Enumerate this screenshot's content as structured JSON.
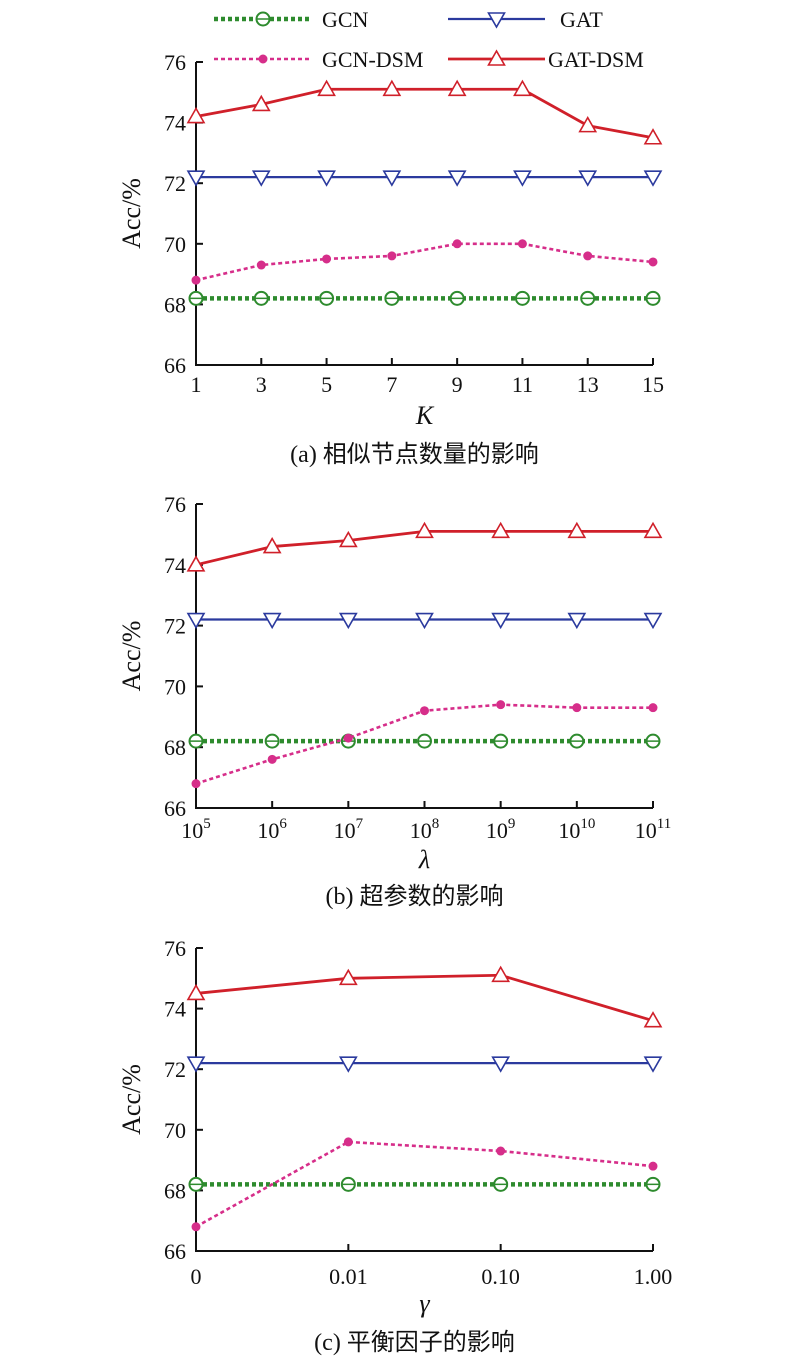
{
  "legend": {
    "items": [
      {
        "key": "gcn",
        "label": "GCN"
      },
      {
        "key": "gat",
        "label": "GAT"
      },
      {
        "key": "gcn_dsm",
        "label": "GCN-DSM"
      },
      {
        "key": "gat_dsm",
        "label": "GAT-DSM"
      }
    ]
  },
  "series_styles": {
    "gcn": {
      "color": "#2e8b2e",
      "marker": "circle",
      "dash": "dot"
    },
    "gat": {
      "color": "#2b3a9e",
      "marker": "triangle-down",
      "dash": "solid"
    },
    "gcn_dsm": {
      "color": "#d62e8a",
      "marker": "dot",
      "dash": "dot"
    },
    "gat_dsm": {
      "color": "#d0202a",
      "marker": "triangle-up",
      "dash": "solid"
    }
  },
  "chart_data": [
    {
      "type": "line",
      "caption": "(a) 相似节点数量的影响",
      "xlabel": "K",
      "ylabel": "Acc/%",
      "ylim": [
        66,
        76
      ],
      "yticks": [
        66,
        68,
        70,
        72,
        74,
        76
      ],
      "x": [
        1,
        3,
        5,
        7,
        9,
        11,
        13,
        15
      ],
      "xtick_labels": [
        "1",
        "3",
        "5",
        "7",
        "9",
        "11",
        "13",
        "15"
      ],
      "series": [
        {
          "key": "gcn",
          "values": [
            68.2,
            68.2,
            68.2,
            68.2,
            68.2,
            68.2,
            68.2,
            68.2
          ]
        },
        {
          "key": "gat",
          "values": [
            72.2,
            72.2,
            72.2,
            72.2,
            72.2,
            72.2,
            72.2,
            72.2
          ]
        },
        {
          "key": "gcn_dsm",
          "values": [
            68.8,
            69.3,
            69.5,
            69.6,
            70.0,
            70.0,
            69.6,
            69.4
          ]
        },
        {
          "key": "gat_dsm",
          "values": [
            74.2,
            74.6,
            75.1,
            75.1,
            75.1,
            75.1,
            73.9,
            73.5
          ]
        }
      ]
    },
    {
      "type": "line",
      "caption": "(b) 超参数的影响",
      "xlabel": "λ",
      "ylabel": "Acc/%",
      "ylim": [
        66,
        76
      ],
      "yticks": [
        66,
        68,
        70,
        72,
        74,
        76
      ],
      "x": [
        "1e5",
        "1e6",
        "1e7",
        "1e8",
        "1e9",
        "1e10",
        "1e11"
      ],
      "xtick_labels": [
        {
          "base": "10",
          "exp": "5"
        },
        {
          "base": "10",
          "exp": "6"
        },
        {
          "base": "10",
          "exp": "7"
        },
        {
          "base": "10",
          "exp": "8"
        },
        {
          "base": "10",
          "exp": "9"
        },
        {
          "base": "10",
          "exp": "10"
        },
        {
          "base": "10",
          "exp": "11"
        }
      ],
      "xscale": "log",
      "series": [
        {
          "key": "gcn",
          "values": [
            68.2,
            68.2,
            68.2,
            68.2,
            68.2,
            68.2,
            68.2
          ]
        },
        {
          "key": "gat",
          "values": [
            72.2,
            72.2,
            72.2,
            72.2,
            72.2,
            72.2,
            72.2
          ]
        },
        {
          "key": "gcn_dsm",
          "values": [
            66.8,
            67.6,
            68.3,
            69.2,
            69.4,
            69.3,
            69.3
          ]
        },
        {
          "key": "gat_dsm",
          "values": [
            74.0,
            74.6,
            74.8,
            75.1,
            75.1,
            75.1,
            75.1
          ]
        }
      ]
    },
    {
      "type": "line",
      "caption": "(c) 平衡因子的影响",
      "xlabel": "γ",
      "ylabel": "Acc/%",
      "ylim": [
        66,
        76
      ],
      "yticks": [
        66,
        68,
        70,
        72,
        74,
        76
      ],
      "x": [
        0,
        0.01,
        0.1,
        1.0
      ],
      "xtick_labels": [
        "0",
        "0.01",
        "0.10",
        "1.00"
      ],
      "series": [
        {
          "key": "gcn",
          "values": [
            68.2,
            68.2,
            68.2,
            68.2
          ]
        },
        {
          "key": "gat",
          "values": [
            72.2,
            72.2,
            72.2,
            72.2
          ]
        },
        {
          "key": "gcn_dsm",
          "values": [
            66.8,
            69.6,
            69.3,
            68.8
          ]
        },
        {
          "key": "gat_dsm",
          "values": [
            74.5,
            75.0,
            75.1,
            73.6
          ]
        }
      ]
    }
  ]
}
